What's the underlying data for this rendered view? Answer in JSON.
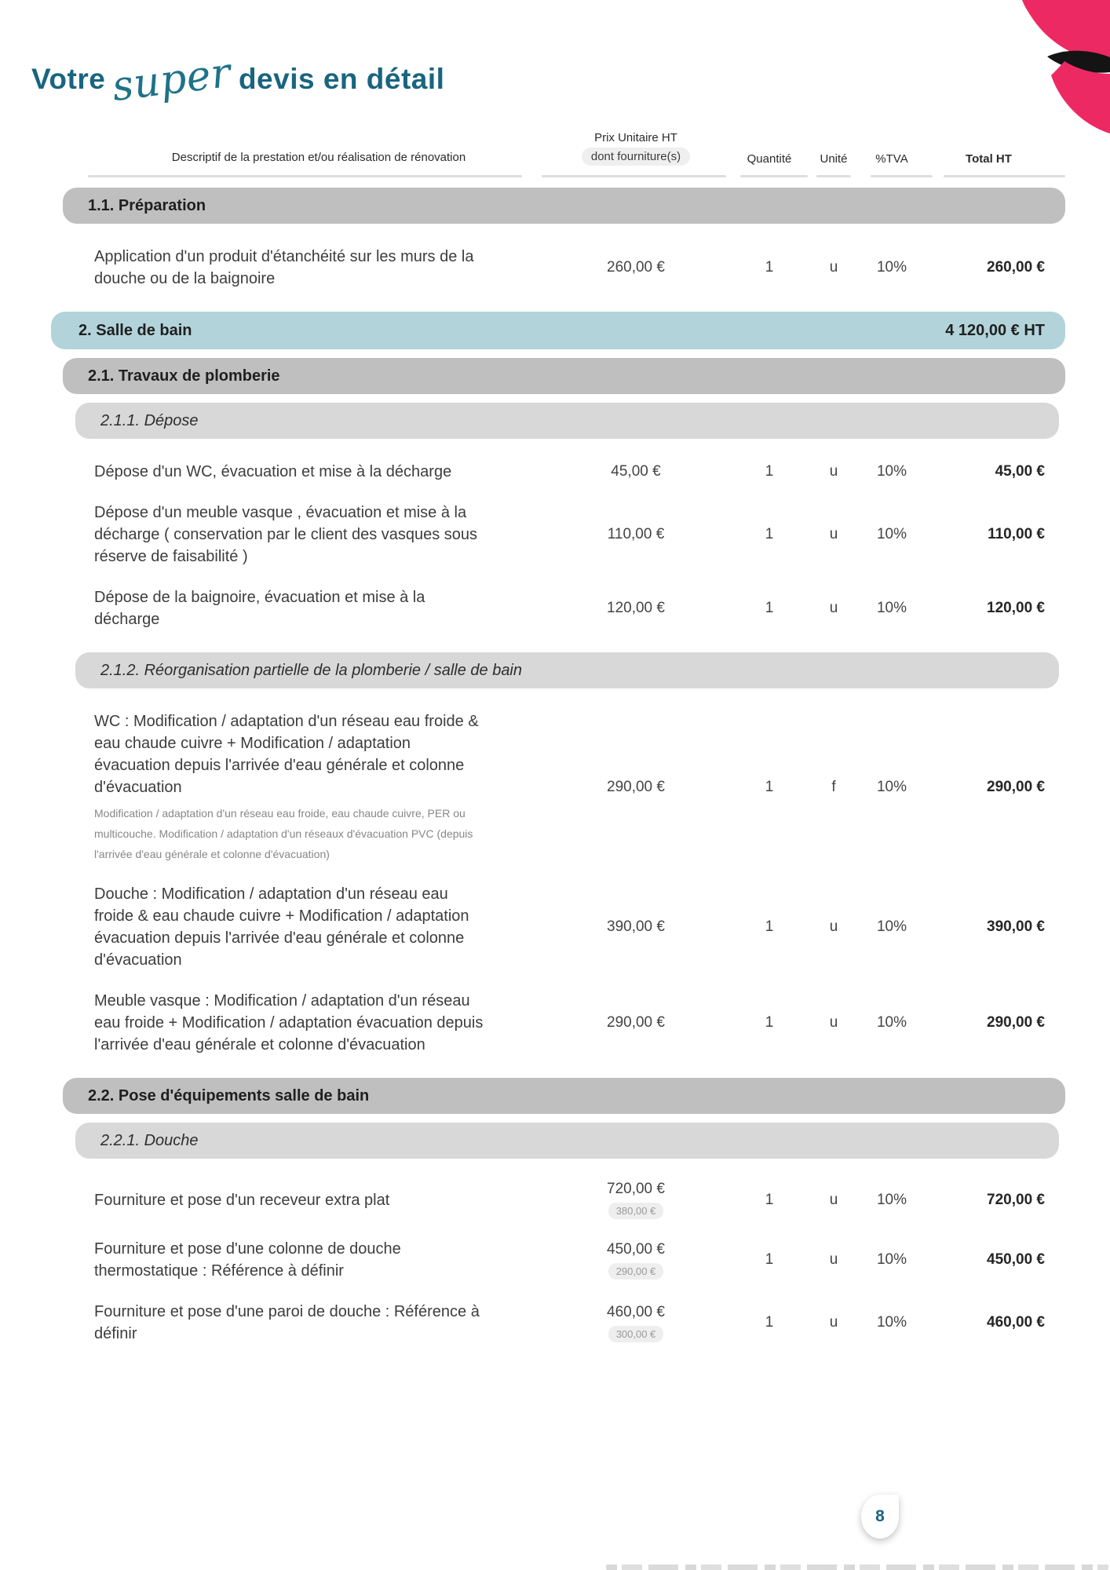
{
  "page": {
    "title": {
      "prefix": "Votre",
      "script": "super",
      "suffix": "devis en détail"
    },
    "page_number": "8"
  },
  "colors": {
    "accent_teal": "#19657f",
    "brand_pink": "#ed2963",
    "section_level1_bg": "#b2d3da",
    "section_level2_bg": "#bfbfbf",
    "section_level3_bg": "#d8d8d8"
  },
  "table": {
    "headers": {
      "description": "Descriptif de la prestation et/ou réalisation de rénovation",
      "unit_price_line1": "Prix Unitaire HT",
      "unit_price_line2": "dont fourniture(s)",
      "quantity": "Quantité",
      "unit": "Unité",
      "vat": "%TVA",
      "total": "Total HT"
    },
    "blocks": [
      {
        "type": "bar2",
        "label": "1.1. Préparation"
      },
      {
        "type": "item",
        "desc": "Application d'un produit d'étanchéité sur les murs de la douche ou de la baignoire",
        "price": "260,00 €",
        "qty": "1",
        "unit": "u",
        "vat": "10%",
        "total": "260,00 €"
      },
      {
        "type": "bar1",
        "label": "2. Salle de bain",
        "total": "4 120,00 € HT"
      },
      {
        "type": "bar2",
        "label": "2.1. Travaux de plomberie"
      },
      {
        "type": "bar3",
        "label": "2.1.1. Dépose"
      },
      {
        "type": "item",
        "desc": "Dépose d'un WC, évacuation et mise à la décharge",
        "price": "45,00 €",
        "qty": "1",
        "unit": "u",
        "vat": "10%",
        "total": "45,00 €"
      },
      {
        "type": "item",
        "desc": "Dépose d'un meuble vasque , évacuation et mise à la décharge ( conservation par le client des vasques sous réserve de faisabilité )",
        "price": "110,00 €",
        "qty": "1",
        "unit": "u",
        "vat": "10%",
        "total": "110,00 €"
      },
      {
        "type": "item",
        "desc": "Dépose de la baignoire, évacuation et mise à la décharge",
        "price": "120,00 €",
        "qty": "1",
        "unit": "u",
        "vat": "10%",
        "total": "120,00 €"
      },
      {
        "type": "bar3",
        "label": "2.1.2. Réorganisation partielle de la plomberie / salle de bain"
      },
      {
        "type": "item",
        "desc": "WC : Modification / adaptation d'un réseau eau froide & eau chaude cuivre + Modification / adaptation évacuation depuis l'arrivée d'eau générale et colonne d'évacuation",
        "note": "Modification / adaptation d'un réseau eau froide, eau chaude cuivre, PER ou multicouche. Modification / adaptation d'un réseaux d'évacuation PVC (depuis l'arrivée d'eau générale et colonne d'évacuation)",
        "price": "290,00 €",
        "qty": "1",
        "unit": "f",
        "vat": "10%",
        "total": "290,00 €"
      },
      {
        "type": "item",
        "desc": "Douche : Modification / adaptation d'un réseau eau froide & eau chaude cuivre + Modification / adaptation évacuation depuis l'arrivée d'eau générale et colonne d'évacuation",
        "price": "390,00 €",
        "qty": "1",
        "unit": "u",
        "vat": "10%",
        "total": "390,00 €"
      },
      {
        "type": "item",
        "desc": "Meuble vasque : Modification / adaptation d'un réseau eau froide + Modification / adaptation évacuation depuis l'arrivée d'eau générale et colonne d'évacuation",
        "price": "290,00 €",
        "qty": "1",
        "unit": "u",
        "vat": "10%",
        "total": "290,00 €"
      },
      {
        "type": "bar2",
        "label": "2.2. Pose d'équipements salle de bain"
      },
      {
        "type": "bar3",
        "label": "2.2.1. Douche"
      },
      {
        "type": "item",
        "desc": "Fourniture et pose d'un receveur extra plat",
        "price": "720,00 €",
        "price_sub": "380,00 €",
        "qty": "1",
        "unit": "u",
        "vat": "10%",
        "total": "720,00 €"
      },
      {
        "type": "item",
        "desc": "Fourniture et pose d'une colonne de douche thermostatique : Référence à définir",
        "price": "450,00 €",
        "price_sub": "290,00 €",
        "qty": "1",
        "unit": "u",
        "vat": "10%",
        "total": "450,00 €"
      },
      {
        "type": "item",
        "desc": "Fourniture et pose d'une paroi de douche : Référence à définir",
        "price": "460,00 €",
        "price_sub": "300,00 €",
        "qty": "1",
        "unit": "u",
        "vat": "10%",
        "total": "460,00 €"
      }
    ]
  }
}
